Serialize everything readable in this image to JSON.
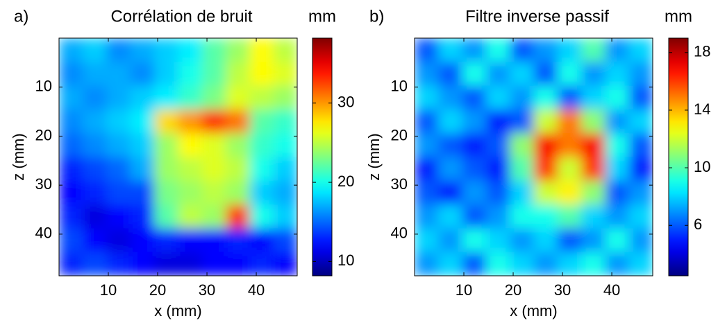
{
  "chart_data": [
    {
      "type": "heatmap",
      "panel_label": "a)",
      "title": "Corrélation de bruit",
      "xlabel": "x (mm)",
      "ylabel": "z (mm)",
      "xlim": [
        0,
        48.3
      ],
      "ylim": [
        0,
        48.5
      ],
      "y_reversed": true,
      "xticks": [
        10,
        20,
        30,
        40
      ],
      "yticks": [
        10,
        20,
        30,
        40
      ],
      "colormap": "jet",
      "colorbar": {
        "label": "mm",
        "clim": [
          8.2,
          38.2
        ],
        "ticks": [
          10,
          20,
          30
        ]
      },
      "values": [
        [
          17,
          18,
          16,
          17,
          18,
          19,
          22,
          24,
          27,
          25
        ],
        [
          16,
          17,
          17,
          16,
          18,
          20,
          22,
          25,
          27,
          26
        ],
        [
          17,
          16,
          17,
          18,
          19,
          21,
          23,
          26,
          25,
          24
        ],
        [
          16,
          17,
          18,
          19,
          28,
          30,
          33,
          31,
          22,
          21
        ],
        [
          15,
          16,
          17,
          18,
          24,
          27,
          26,
          24,
          21,
          20
        ],
        [
          13,
          14,
          15,
          17,
          24,
          25,
          26,
          25,
          20,
          18
        ],
        [
          12,
          13,
          14,
          14,
          23,
          24,
          25,
          24,
          18,
          17
        ],
        [
          13,
          11,
          12,
          13,
          22,
          25,
          24,
          33,
          20,
          18
        ],
        [
          14,
          12,
          11,
          12,
          13,
          12,
          12,
          13,
          12,
          14
        ],
        [
          13,
          14,
          13,
          12,
          11,
          11,
          12,
          12,
          13,
          12
        ]
      ]
    },
    {
      "type": "heatmap",
      "panel_label": "b)",
      "title": "Filtre inverse passif",
      "xlabel": "x (mm)",
      "ylabel": "z (mm)",
      "xlim": [
        0,
        48.3
      ],
      "ylim": [
        0,
        48.5
      ],
      "y_reversed": true,
      "xticks": [
        10,
        20,
        30,
        40
      ],
      "yticks": [
        10,
        20,
        30,
        40
      ],
      "colormap": "jet",
      "colorbar": {
        "label": "mm",
        "clim": [
          2.5,
          19
        ],
        "ticks": [
          6,
          10,
          14,
          18
        ]
      },
      "values": [
        [
          6,
          8,
          7,
          9,
          6,
          7,
          8,
          10,
          7,
          8
        ],
        [
          7,
          6,
          9,
          7,
          8,
          6,
          9,
          7,
          8,
          7
        ],
        [
          8,
          7,
          6,
          8,
          7,
          9,
          6,
          8,
          9,
          6
        ],
        [
          6,
          8,
          7,
          5,
          6,
          12,
          15,
          11,
          7,
          8
        ],
        [
          7,
          6,
          5,
          6,
          11,
          17,
          15,
          17,
          9,
          6
        ],
        [
          5,
          7,
          6,
          5,
          10,
          16,
          12,
          16,
          8,
          5
        ],
        [
          6,
          5,
          7,
          6,
          8,
          12,
          13,
          11,
          6,
          7
        ],
        [
          7,
          8,
          6,
          7,
          9,
          9,
          10,
          8,
          7,
          8
        ],
        [
          8,
          7,
          9,
          8,
          7,
          8,
          6,
          7,
          9,
          7
        ],
        [
          7,
          8,
          6,
          9,
          8,
          7,
          8,
          9,
          7,
          8
        ]
      ]
    }
  ]
}
